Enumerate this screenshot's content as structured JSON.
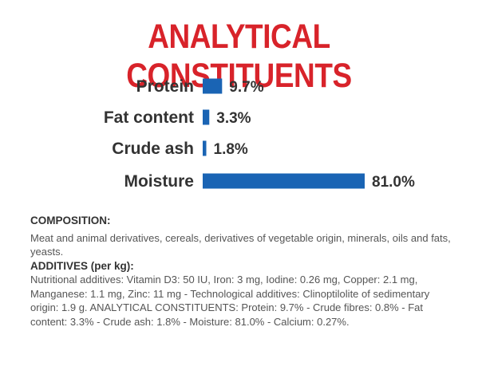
{
  "colors": {
    "title": "#d8232a",
    "bar": "#1a64b4",
    "label": "#333333",
    "body_text": "#555555",
    "heading_text": "#333333"
  },
  "chart_data": {
    "type": "bar",
    "orientation": "horizontal",
    "title": "ANALYTICAL CONSTITUENTS",
    "categories": [
      "Protein",
      "Fat content",
      "Crude ash",
      "Moisture"
    ],
    "values": [
      9.7,
      3.3,
      1.8,
      81.0
    ],
    "value_labels": [
      "9.7%",
      "3.3%",
      "1.8%",
      "81.0%"
    ],
    "unit": "%",
    "xlim": [
      0,
      81.0
    ],
    "grid": false,
    "legend": "none"
  },
  "composition": {
    "heading": "COMPOSITION:",
    "text": "Meat and animal derivatives, cereals, derivatives of vegetable origin, minerals, oils and fats, yeasts.",
    "additives_heading": "ADDITIVES (per kg):",
    "additives_text": "Nutritional additives: Vitamin D3: 50 IU, Iron: 3 mg, Iodine: 0.26 mg, Copper: 2.1 mg, Manganese: 1.1 mg, Zinc: 11 mg - Technological additives: Clinoptilolite of sedimentary origin: 1.9 g. ANALYTICAL CONSTITUENTS: Protein: 9.7% - Crude fibres: 0.8% - Fat content: 3.3% - Crude ash: 1.8% - Moisture: 81.0% - Calcium: 0.27%."
  }
}
